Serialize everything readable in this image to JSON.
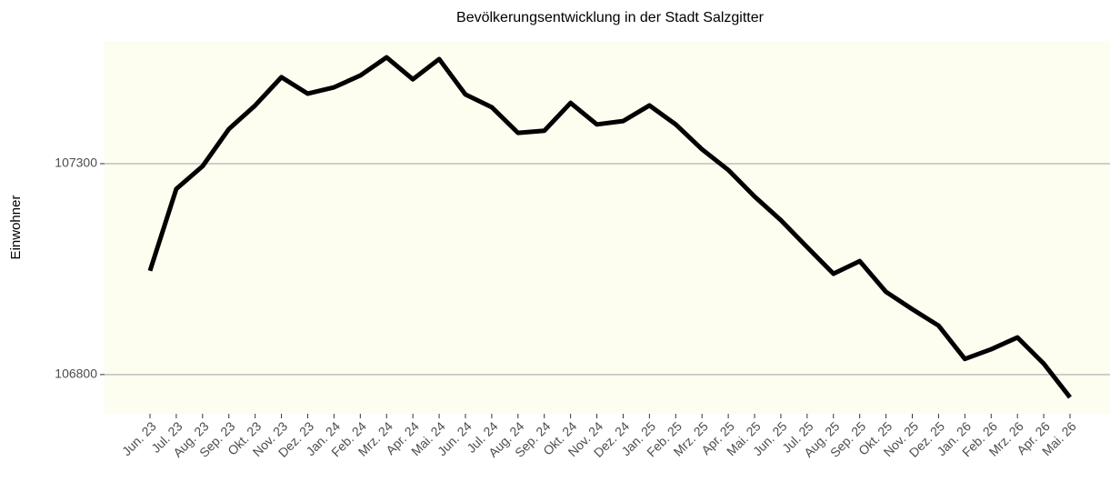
{
  "chart_data": {
    "type": "line",
    "title": "Bevölkerungsentwicklung in der Stadt Salzgitter",
    "y_label": "Einwohner",
    "categories": [
      "Jun. 23",
      "Jul. 23",
      "Aug. 23",
      "Sep. 23",
      "Okt. 23",
      "Nov. 23",
      "Dez. 23",
      "Jan. 24",
      "Feb. 24",
      "Mrz. 24",
      "Apr. 24",
      "Mai. 24",
      "Jun. 24",
      "Jul. 24",
      "Aug. 24",
      "Sep. 24",
      "Okt. 24",
      "Nov. 24",
      "Dez. 24",
      "Jan. 25",
      "Feb. 25",
      "Mrz. 25",
      "Apr. 25",
      "Mai. 25",
      "Jun. 25",
      "Jul. 25",
      "Aug. 25",
      "Sep. 25",
      "Okt. 25",
      "Nov. 25",
      "Dez. 25",
      "Jan. 26",
      "Feb. 26",
      "Mrz. 26",
      "Apr. 26",
      "Mai. 26"
    ],
    "values": [
      107046,
      107240,
      107294,
      107382,
      107438,
      107505,
      107466,
      107481,
      107509,
      107552,
      107500,
      107548,
      107464,
      107434,
      107373,
      107378,
      107444,
      107393,
      107401,
      107438,
      107393,
      107334,
      107285,
      107222,
      107166,
      107102,
      107039,
      107069,
      106996,
      106955,
      106916,
      106837,
      106860,
      106888,
      106826,
      106746
    ],
    "color": "#000000",
    "ylim": [
      106707,
      107591
    ],
    "yticks": [
      106800,
      107300
    ],
    "grid": true
  }
}
